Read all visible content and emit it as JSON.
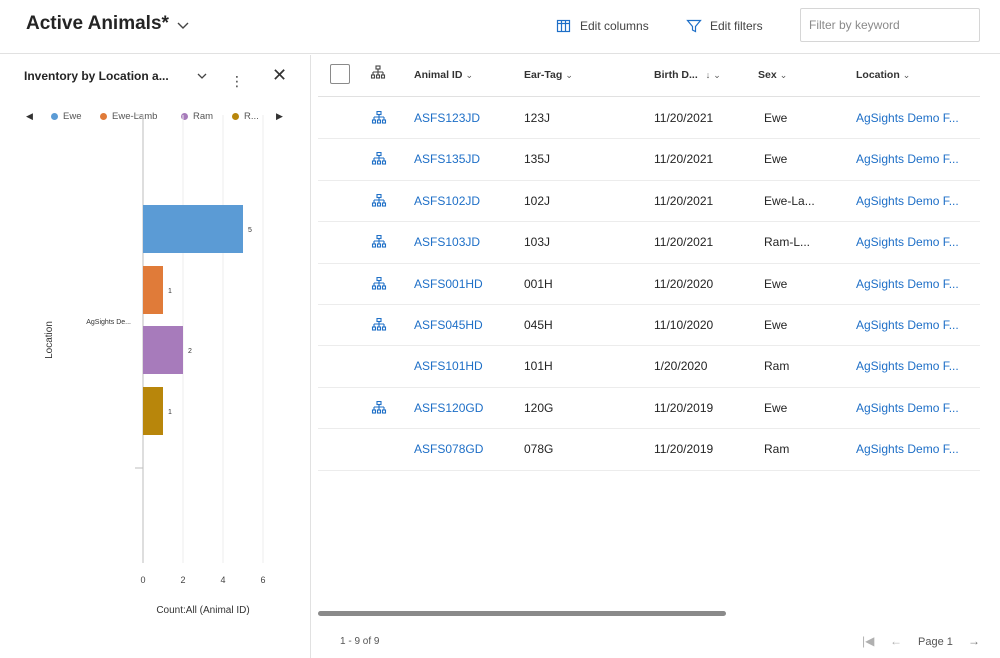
{
  "header": {
    "title": "Active Animals*",
    "edit_columns": "Edit columns",
    "edit_filters": "Edit filters",
    "search_placeholder": "Filter by keyword"
  },
  "chart_panel": {
    "title": "Inventory by Location a...",
    "legend": [
      "Ewe",
      "Ewe-Lamb",
      "Ram",
      "R..."
    ],
    "colors": [
      "#5b9bd5",
      "#e07b39",
      "#a77bbb",
      "#b8860b"
    ]
  },
  "chart_data": {
    "type": "bar",
    "orientation": "horizontal",
    "categories": [
      "AgSights De..."
    ],
    "series": [
      {
        "name": "Ewe",
        "values": [
          5
        ]
      },
      {
        "name": "Ewe-Lamb",
        "values": [
          1
        ]
      },
      {
        "name": "Ram",
        "values": [
          2
        ]
      },
      {
        "name": "R...",
        "values": [
          1
        ]
      }
    ],
    "data_labels": [
      "5",
      "1",
      "2",
      "1"
    ],
    "xlabel": "Count:All (Animal ID)",
    "ylabel": "Location",
    "xticks": [
      "0",
      "2",
      "4",
      "6"
    ],
    "xlim": [
      0,
      6
    ],
    "legend_position": "top"
  },
  "grid": {
    "columns": [
      "Animal ID",
      "Ear-Tag",
      "Birth D...",
      "Sex",
      "Location"
    ],
    "rows": [
      {
        "animal_id": "ASFS123JD",
        "ear_tag": "123J",
        "birth": "11/20/2021",
        "sex": "Ewe",
        "location": "AgSights Demo F...",
        "hier": true
      },
      {
        "animal_id": "ASFS135JD",
        "ear_tag": "135J",
        "birth": "11/20/2021",
        "sex": "Ewe",
        "location": "AgSights Demo F...",
        "hier": true
      },
      {
        "animal_id": "ASFS102JD",
        "ear_tag": "102J",
        "birth": "11/20/2021",
        "sex": "Ewe-La...",
        "location": "AgSights Demo F...",
        "hier": true
      },
      {
        "animal_id": "ASFS103JD",
        "ear_tag": "103J",
        "birth": "11/20/2021",
        "sex": "Ram-L...",
        "location": "AgSights Demo F...",
        "hier": true
      },
      {
        "animal_id": "ASFS001HD",
        "ear_tag": "001H",
        "birth": "11/20/2020",
        "sex": "Ewe",
        "location": "AgSights Demo F...",
        "hier": true
      },
      {
        "animal_id": "ASFS045HD",
        "ear_tag": "045H",
        "birth": "11/10/2020",
        "sex": "Ewe",
        "location": "AgSights Demo F...",
        "hier": true
      },
      {
        "animal_id": "ASFS101HD",
        "ear_tag": "101H",
        "birth": "1/20/2020",
        "sex": "Ram",
        "location": "AgSights Demo F...",
        "hier": false
      },
      {
        "animal_id": "ASFS120GD",
        "ear_tag": "120G",
        "birth": "11/20/2019",
        "sex": "Ewe",
        "location": "AgSights Demo F...",
        "hier": true
      },
      {
        "animal_id": "ASFS078GD",
        "ear_tag": "078G",
        "birth": "11/20/2019",
        "sex": "Ram",
        "location": "AgSights Demo F...",
        "hier": false
      }
    ]
  },
  "footer": {
    "count": "1 - 9 of 9",
    "page": "Page 1"
  }
}
